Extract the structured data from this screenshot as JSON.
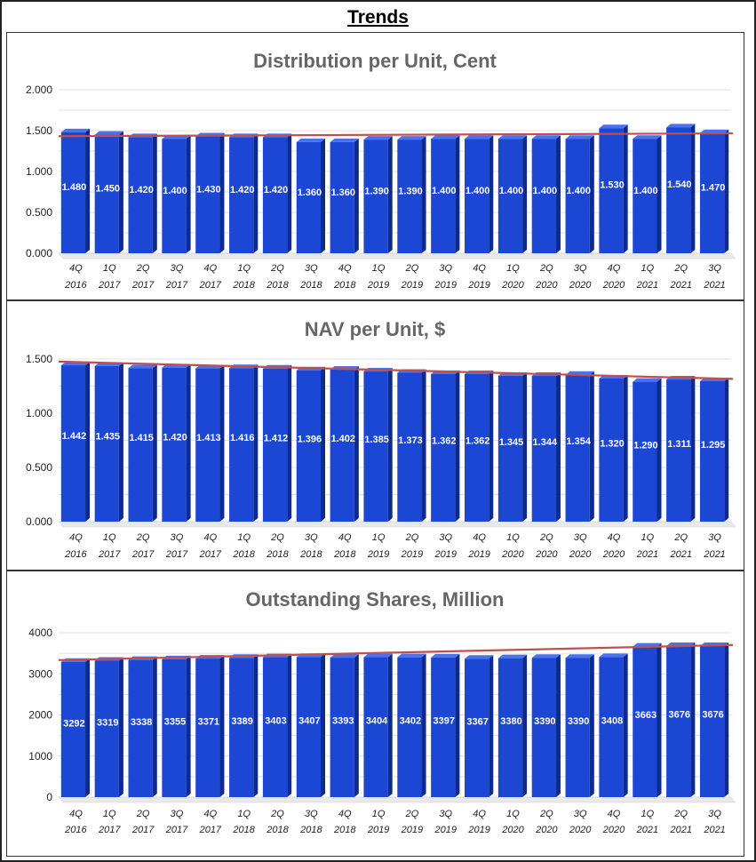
{
  "page": {
    "title": "Trends"
  },
  "colors": {
    "bar_front": "#1b47d4",
    "bar_side": "#0d2a8f",
    "bar_top": "#4a72ee",
    "trend": "#c0504d",
    "title_gray": "#666666"
  },
  "chart_data": [
    {
      "type": "bar",
      "title": "Distribution per Unit, Cent",
      "categories": [
        [
          "4Q",
          "2016"
        ],
        [
          "1Q",
          "2017"
        ],
        [
          "2Q",
          "2017"
        ],
        [
          "3Q",
          "2017"
        ],
        [
          "4Q",
          "2017"
        ],
        [
          "1Q",
          "2018"
        ],
        [
          "2Q",
          "2018"
        ],
        [
          "3Q",
          "2018"
        ],
        [
          "4Q",
          "2018"
        ],
        [
          "1Q",
          "2019"
        ],
        [
          "2Q",
          "2019"
        ],
        [
          "3Q",
          "2019"
        ],
        [
          "4Q",
          "2019"
        ],
        [
          "1Q",
          "2020"
        ],
        [
          "2Q",
          "2020"
        ],
        [
          "3Q",
          "2020"
        ],
        [
          "4Q",
          "2020"
        ],
        [
          "1Q",
          "2021"
        ],
        [
          "2Q",
          "2021"
        ],
        [
          "3Q",
          "2021"
        ]
      ],
      "values": [
        1.48,
        1.45,
        1.42,
        1.4,
        1.43,
        1.42,
        1.42,
        1.36,
        1.36,
        1.39,
        1.39,
        1.4,
        1.4,
        1.4,
        1.4,
        1.4,
        1.53,
        1.4,
        1.54,
        1.47
      ],
      "labels": [
        "1.480",
        "1.450",
        "1.420",
        "1.400",
        "1.430",
        "1.420",
        "1.420",
        "1.360",
        "1.360",
        "1.390",
        "1.390",
        "1.400",
        "1.400",
        "1.400",
        "1.400",
        "1.400",
        "1.530",
        "1.400",
        "1.540",
        "1.470"
      ],
      "yticks": [
        "0.000",
        "0.500",
        "1.000",
        "1.500",
        "2.000"
      ],
      "ytick_values": [
        0,
        0.5,
        1.0,
        1.5,
        2.0
      ],
      "ylim": [
        0,
        2.0
      ],
      "trendline": [
        1.41,
        1.445
      ]
    },
    {
      "type": "bar",
      "title": "NAV per Unit, $",
      "categories": [
        [
          "4Q",
          "2016"
        ],
        [
          "1Q",
          "2017"
        ],
        [
          "2Q",
          "2017"
        ],
        [
          "3Q",
          "2017"
        ],
        [
          "4Q",
          "2017"
        ],
        [
          "1Q",
          "2018"
        ],
        [
          "2Q",
          "2018"
        ],
        [
          "3Q",
          "2018"
        ],
        [
          "4Q",
          "2018"
        ],
        [
          "1Q",
          "2019"
        ],
        [
          "2Q",
          "2019"
        ],
        [
          "3Q",
          "2019"
        ],
        [
          "4Q",
          "2019"
        ],
        [
          "1Q",
          "2020"
        ],
        [
          "2Q",
          "2020"
        ],
        [
          "3Q",
          "2020"
        ],
        [
          "4Q",
          "2020"
        ],
        [
          "1Q",
          "2021"
        ],
        [
          "2Q",
          "2021"
        ],
        [
          "3Q",
          "2021"
        ]
      ],
      "values": [
        1.442,
        1.435,
        1.415,
        1.42,
        1.413,
        1.416,
        1.412,
        1.396,
        1.402,
        1.385,
        1.373,
        1.362,
        1.362,
        1.345,
        1.344,
        1.354,
        1.32,
        1.29,
        1.311,
        1.295
      ],
      "labels": [
        "1.442",
        "1.435",
        "1.415",
        "1.420",
        "1.413",
        "1.416",
        "1.412",
        "1.396",
        "1.402",
        "1.385",
        "1.373",
        "1.362",
        "1.362",
        "1.345",
        "1.344",
        "1.354",
        "1.320",
        "1.290",
        "1.311",
        "1.295"
      ],
      "yticks": [
        "0.000",
        "0.500",
        "1.000",
        "1.500"
      ],
      "ytick_values": [
        0,
        0.5,
        1.0,
        1.5
      ],
      "ylim": [
        0,
        1.5
      ],
      "trendline": [
        1.46,
        1.3
      ]
    },
    {
      "type": "bar",
      "title": "Outstanding Shares, Million",
      "categories": [
        [
          "4Q",
          "2016"
        ],
        [
          "1Q",
          "2017"
        ],
        [
          "2Q",
          "2017"
        ],
        [
          "3Q",
          "2017"
        ],
        [
          "4Q",
          "2017"
        ],
        [
          "1Q",
          "2018"
        ],
        [
          "2Q",
          "2018"
        ],
        [
          "3Q",
          "2018"
        ],
        [
          "4Q",
          "2018"
        ],
        [
          "1Q",
          "2019"
        ],
        [
          "2Q",
          "2019"
        ],
        [
          "3Q",
          "2019"
        ],
        [
          "4Q",
          "2019"
        ],
        [
          "1Q",
          "2020"
        ],
        [
          "2Q",
          "2020"
        ],
        [
          "3Q",
          "2020"
        ],
        [
          "4Q",
          "2020"
        ],
        [
          "1Q",
          "2021"
        ],
        [
          "2Q",
          "2021"
        ],
        [
          "3Q",
          "2021"
        ]
      ],
      "values": [
        3292,
        3319,
        3338,
        3355,
        3371,
        3389,
        3403,
        3407,
        3393,
        3404,
        3402,
        3397,
        3367,
        3380,
        3390,
        3390,
        3408,
        3663,
        3676,
        3676
      ],
      "labels": [
        "3292",
        "3319",
        "3338",
        "3355",
        "3371",
        "3389",
        "3403",
        "3407",
        "3393",
        "3404",
        "3402",
        "3397",
        "3367",
        "3380",
        "3390",
        "3390",
        "3408",
        "3663",
        "3676",
        "3676"
      ],
      "yticks": [
        "0",
        "1000",
        "2000",
        "3000",
        "4000"
      ],
      "ytick_values": [
        0,
        1000,
        2000,
        3000,
        4000
      ],
      "ylim": [
        0,
        4000
      ],
      "trendline": [
        3290,
        3660
      ]
    }
  ]
}
